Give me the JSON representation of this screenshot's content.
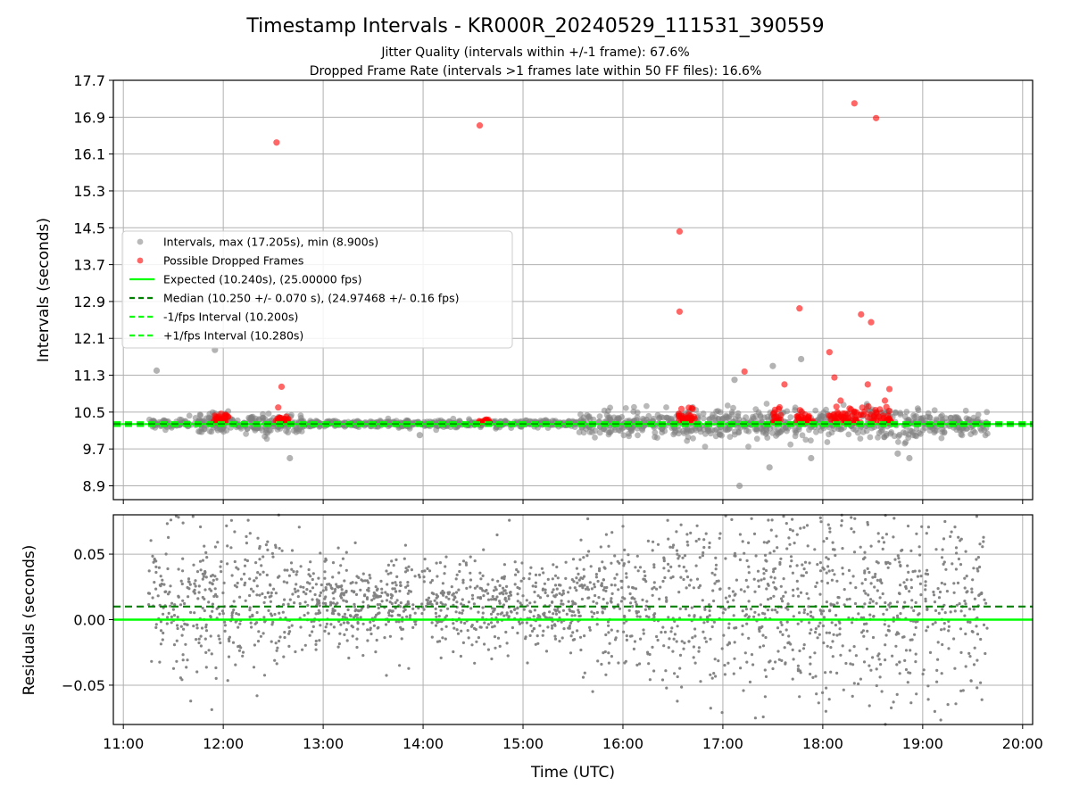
{
  "title": "Timestamp Intervals - KR000R_20240529_111531_390559",
  "subtitle_lines": [
    "Jitter Quality (intervals within +/-1 frame): 67.6%",
    "Dropped Frame Rate (intervals >1 frames late within 50 FF files): 16.6%"
  ],
  "colors": {
    "intervals": "#808080",
    "dropped": "#ff0000",
    "expected": "#00ff00",
    "median": "#008000",
    "fps_band": "#00ff00",
    "residuals": "#808080",
    "grid": "#b0b0b0"
  },
  "chart_data": [
    {
      "type": "scatter",
      "ylabel": "Intervals (seconds)",
      "ylim": [
        8.6,
        17.7
      ],
      "yticks": [
        "8.9",
        "9.7",
        "10.5",
        "11.3",
        "12.1",
        "12.9",
        "13.7",
        "14.5",
        "15.3",
        "16.1",
        "16.9",
        "17.7"
      ],
      "x_range_hours": [
        10.9,
        20.1
      ],
      "grid": true,
      "legend_position": "center-left",
      "legend": [
        "Intervals, max (17.205s), min (8.900s)",
        "Possible Dropped Frames",
        "Expected (10.240s), (25.00000 fps)",
        "Median (10.250 +/- 0.070 s), (24.97468 +/- 0.16 fps)",
        "-1/fps Interval (10.200s)",
        "+1/fps Interval (10.280s)"
      ],
      "lines": {
        "expected": 10.24,
        "median": 10.25,
        "minus_fps": 10.2,
        "plus_fps": 10.28
      },
      "gray_outliers": [
        {
          "t": "11:20",
          "y": 11.4
        },
        {
          "t": "11:55",
          "y": 11.85
        },
        {
          "t": "12:40",
          "y": 9.5
        },
        {
          "t": "13:58",
          "y": 10.0
        },
        {
          "t": "17:07",
          "y": 11.2
        },
        {
          "t": "17:10",
          "y": 8.9
        },
        {
          "t": "17:28",
          "y": 9.3
        },
        {
          "t": "17:30",
          "y": 11.5
        },
        {
          "t": "17:47",
          "y": 11.65
        },
        {
          "t": "17:53",
          "y": 9.5
        },
        {
          "t": "18:45",
          "y": 9.6
        },
        {
          "t": "18:52",
          "y": 9.5
        }
      ],
      "dropped_highlights": [
        {
          "t": "12:32",
          "y": 16.35
        },
        {
          "t": "14:34",
          "y": 16.72
        },
        {
          "t": "16:34",
          "y": 14.42
        },
        {
          "t": "16:34",
          "y": 12.68
        },
        {
          "t": "17:13",
          "y": 11.38
        },
        {
          "t": "17:46",
          "y": 12.75
        },
        {
          "t": "18:04",
          "y": 11.8
        },
        {
          "t": "18:19",
          "y": 17.2
        },
        {
          "t": "18:23",
          "y": 12.62
        },
        {
          "t": "18:29",
          "y": 12.45
        },
        {
          "t": "18:32",
          "y": 16.88
        },
        {
          "t": "12:35",
          "y": 11.05
        },
        {
          "t": "12:33",
          "y": 10.6
        },
        {
          "t": "17:37",
          "y": 11.1
        },
        {
          "t": "18:07",
          "y": 11.25
        },
        {
          "t": "18:27",
          "y": 11.1
        },
        {
          "t": "18:40",
          "y": 11.0
        }
      ]
    },
    {
      "type": "scatter",
      "ylabel": "Residuals (seconds)",
      "ylim": [
        -0.08,
        0.08
      ],
      "yticks": [
        "−0.05",
        "0.00",
        "0.05"
      ],
      "ytick_values": [
        -0.05,
        0.0,
        0.05
      ],
      "xlabel": "Time (UTC)",
      "xticks": [
        "11:00",
        "12:00",
        "13:00",
        "14:00",
        "15:00",
        "16:00",
        "17:00",
        "18:00",
        "19:00",
        "20:00"
      ],
      "grid": true,
      "lines": {
        "zero": 0.0,
        "median": 0.01
      }
    }
  ]
}
